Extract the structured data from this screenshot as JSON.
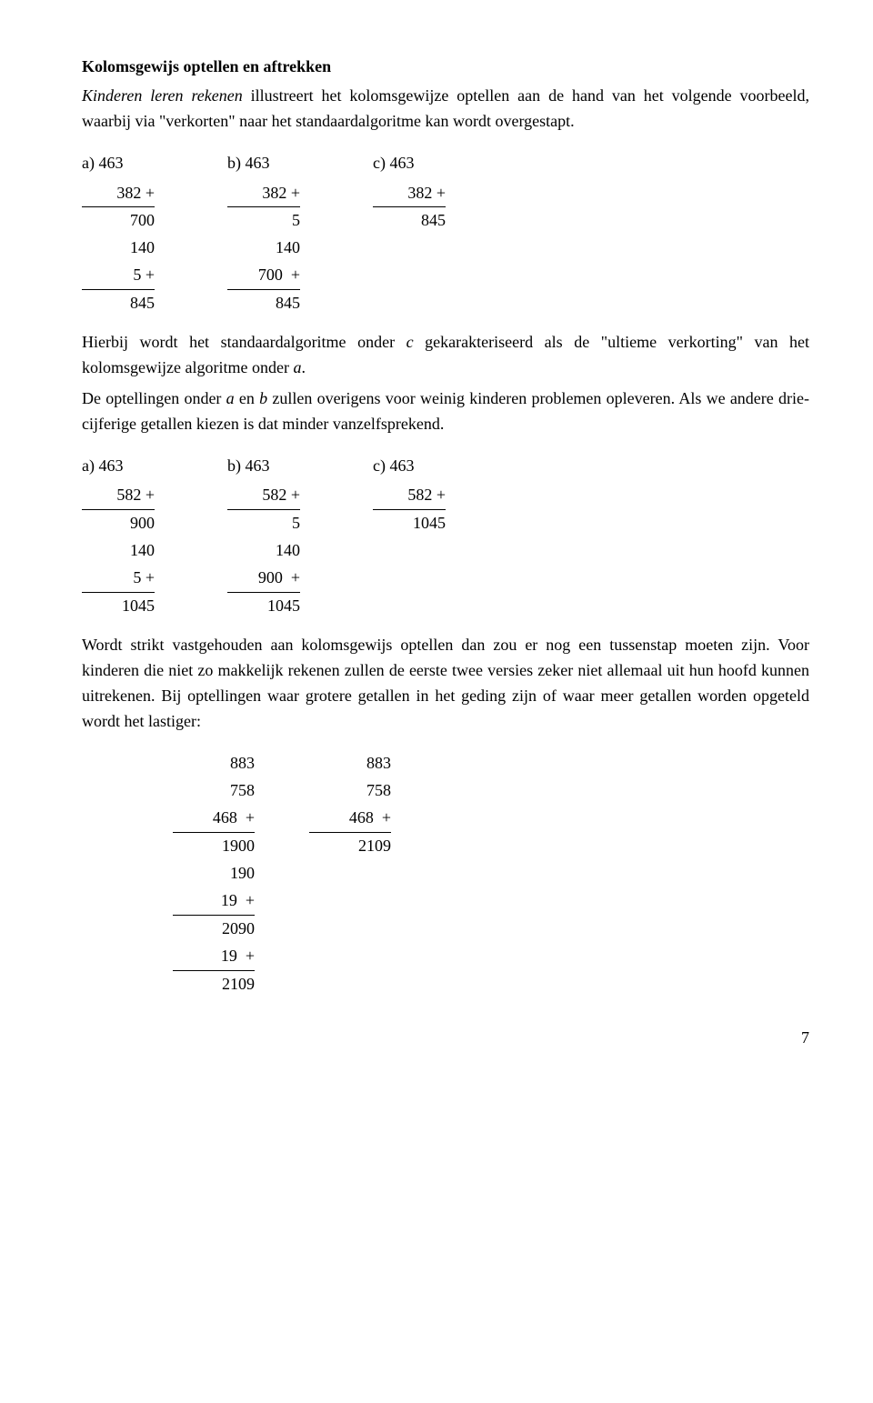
{
  "heading": "Kolomsgewijs optellen en aftrekken",
  "intro": {
    "lead_italic": "Kinderen leren rekenen",
    "rest": " illustreert het kolomsgewijze optellen aan de hand van het volgende voorbeeld, waarbij via \"verkorten\" naar het standaardalgoritme kan wordt overgestapt."
  },
  "block1": {
    "a_label": "a)        463",
    "b_label": "b)        463",
    "c_label": "c)        463",
    "a": {
      "r1": "382 +",
      "r2": "700",
      "r3": "140",
      "r4": "   5 +",
      "r5": "845"
    },
    "b": {
      "r1": "382 +",
      "r2": "5",
      "r3": "140",
      "r4": "700  +",
      "r5": "845"
    },
    "c": {
      "r1": "382 +",
      "r2": "845"
    }
  },
  "mid1": {
    "p1a": "Hierbij wordt het standaardalgoritme onder ",
    "p1_c": "c",
    "p1b": "   gekarakteriseerd als de \"ultieme verkorting\" van het kolomsgewijze algoritme onder ",
    "p1_a2": "a",
    "p1c": ".",
    "p2a": "De optellingen onder ",
    "p2_a": "a",
    "p2b": " en ",
    "p2_b2": "b",
    "p2c": "   zullen overigens voor weinig kinderen problemen opleveren. Als we andere drie-cijferige getallen kiezen is dat minder vanzelfsprekend."
  },
  "block2": {
    "a_label": "a)        463",
    "b_label": "b)        463",
    "c_label": "c)        463",
    "a": {
      "r1": "582 +",
      "r2": "900",
      "r3": "140",
      "r4": "   5 +",
      "r5": "1045"
    },
    "b": {
      "r1": "582 +",
      "r2": "5",
      "r3": "140",
      "r4": "900  +",
      "r5": "1045"
    },
    "c": {
      "r1": "582 +",
      "r2": "1045"
    }
  },
  "mid2": "Wordt strikt vastgehouden aan kolomsgewijs optellen dan zou er nog een tussenstap moeten zijn. Voor kinderen die niet zo makkelijk rekenen zullen de eerste twee versies zeker niet allemaal uit hun hoofd kunnen uitrekenen. Bij optellingen waar grotere getallen in het geding zijn of waar meer getallen worden opgeteld wordt het lastiger:",
  "block3": {
    "left": {
      "r1": "883",
      "r2": "758",
      "r3": "468  +",
      "r4": "1900",
      "r5": "190",
      "r6": " 19  +",
      "r7": "2090",
      "r8": " 19  +",
      "r9": "2109"
    },
    "right": {
      "r1": "883",
      "r2": "758",
      "r3": "468  +",
      "r4": "2109"
    }
  },
  "page": "7"
}
